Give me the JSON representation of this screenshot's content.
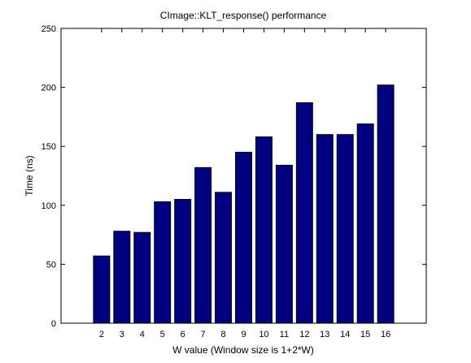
{
  "chart_data": {
    "type": "bar",
    "title": "CImage::KLT_response() performance",
    "xlabel": "W value (Window size is 1+2*W)",
    "ylabel": "Time (ns)",
    "categories": [
      "2",
      "3",
      "4",
      "5",
      "6",
      "7",
      "8",
      "9",
      "10",
      "11",
      "12",
      "13",
      "14",
      "15",
      "16"
    ],
    "values": [
      57,
      78,
      77,
      103,
      105,
      132,
      111,
      145,
      158,
      134,
      187,
      160,
      160,
      169,
      202
    ],
    "ylim": [
      0,
      250
    ],
    "yticks": [
      0,
      50,
      100,
      150,
      200,
      250
    ],
    "xlim": [
      0,
      18
    ],
    "grid": false,
    "bar_color": "#000080"
  }
}
